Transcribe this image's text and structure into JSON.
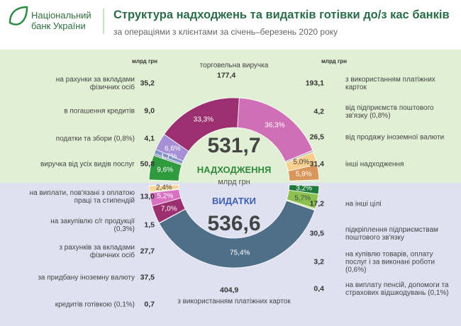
{
  "header": {
    "logo": "Національний банк України",
    "title": "Структура надходжень та видатків готівки до/з кас банків",
    "subtitle": "за операціями з клієнтами за січень–березень 2020 року"
  },
  "chart_data": [
    {
      "type": "pie",
      "title": "НАДХОДЖЕННЯ",
      "total": "531,7",
      "unit": "млрд грн",
      "column_unit": "млрд грн",
      "categories": [
        "виручка від усіх видів послуг",
        "податки та збори (0,8%)",
        "в погашення кредитів",
        "на рахунки за вкладами фізичних осіб",
        "торговельна виручка",
        "з використанням платіжних карток",
        "від підприємств поштового зв'язку (0,8%)",
        "від продажу іноземної валюти",
        "інші надходження"
      ],
      "values": [
        50.8,
        4.1,
        9.0,
        35.2,
        177.4,
        193.1,
        4.2,
        26.5,
        31.4
      ],
      "value_labels": [
        "50,8",
        "4,1",
        "9,0",
        "35,2",
        "177,4",
        "193,1",
        "4,2",
        "26,5",
        "31,4"
      ],
      "shares": [
        9.6,
        null,
        1.7,
        6.6,
        33.3,
        36.3,
        null,
        5.0,
        5.9
      ],
      "share_labels": [
        "9,6%",
        null,
        "1,7%",
        "6,6%",
        "33,3%",
        "36,3%",
        null,
        "5,0%",
        "5,9%"
      ],
      "colors": [
        "#2f9a3e",
        "#8c9bb0",
        "#7f92c8",
        "#a58fd6",
        "#9b2f6f",
        "#cf6fb5",
        "#b9b9b9",
        "#f7cf8e",
        "#d9965a"
      ]
    },
    {
      "type": "pie",
      "title": "ВИДАТКИ",
      "total": "536,6",
      "categories": [
        "на інші цілі",
        "підкріплення підприємствам поштового зв'язку",
        "на купівлю товарів, оплату послуг і за виконані роботи (0,6%)",
        "на виплату пенсій, допомоги та страхових відшкодувань (0,1%)",
        "з використанням платіжних карток",
        "кредитів готівкою (0,1%)",
        "за придбану іноземну валюту",
        "з рахунків за вкладами фізичних осіб",
        "на закупівлю с/г продукції (0,3%)",
        "на виплати, пов'язані з оплатою праці та стипендій"
      ],
      "values": [
        17.2,
        30.5,
        3.2,
        0.4,
        404.9,
        0.7,
        37.5,
        27.7,
        1.5,
        13.0
      ],
      "value_labels": [
        "17,2",
        "30,5",
        "3,2",
        "0,4",
        "404,9",
        "0,7",
        "37,5",
        "27,7",
        "1,5",
        "13,0"
      ],
      "shares": [
        3.2,
        5.7,
        null,
        null,
        75.4,
        null,
        7.0,
        5.2,
        null,
        2.4
      ],
      "share_labels": [
        "3,2%",
        "5,7%",
        null,
        null,
        "75,4%",
        null,
        "7,0%",
        "5,2%",
        null,
        "2,4%"
      ],
      "colors": [
        "#1f7a3b",
        "#8cc152",
        "#c9dc95",
        "#b0b0b0",
        "#4f6f88",
        "#b0b0b0",
        "#9b2f6f",
        "#d771c0",
        "#b59ddb",
        "#f8d79e"
      ]
    }
  ]
}
